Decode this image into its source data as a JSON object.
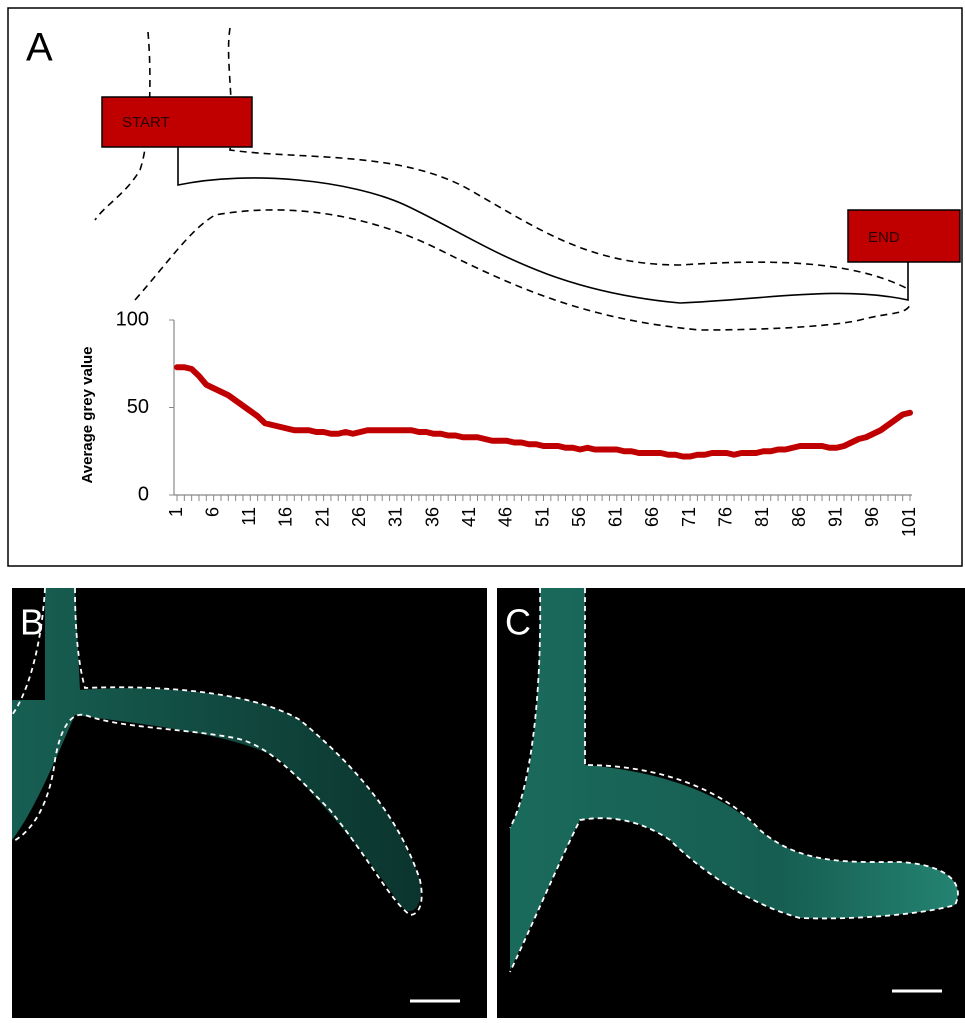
{
  "panels": {
    "a": "A",
    "b": "B",
    "c": "C"
  },
  "chart_data": {
    "type": "line",
    "annotations": [
      "START",
      "END"
    ],
    "y_label": "Average grey value",
    "categories": [
      1,
      null,
      null,
      null,
      null,
      6,
      null,
      null,
      null,
      null,
      11,
      null,
      null,
      null,
      null,
      16,
      null,
      null,
      null,
      null,
      21,
      null,
      null,
      null,
      null,
      26,
      null,
      null,
      null,
      null,
      31,
      null,
      null,
      null,
      null,
      36,
      null,
      null,
      null,
      null,
      41,
      null,
      null,
      null,
      null,
      46,
      null,
      null,
      null,
      null,
      51,
      null,
      null,
      null,
      null,
      56,
      null,
      null,
      null,
      null,
      61,
      null,
      null,
      null,
      null,
      66,
      null,
      null,
      null,
      null,
      71,
      null,
      null,
      null,
      null,
      76,
      null,
      null,
      null,
      null,
      81,
      null,
      null,
      null,
      null,
      86,
      null,
      null,
      null,
      null,
      91,
      null,
      null,
      null,
      null,
      96,
      null,
      null,
      null,
      null,
      101
    ],
    "values": [
      73,
      73,
      72,
      68,
      63,
      61,
      59,
      57,
      54,
      51,
      48,
      45,
      41,
      40,
      39,
      38,
      37,
      37,
      37,
      36,
      36,
      35,
      35,
      36,
      35,
      36,
      37,
      37,
      37,
      37,
      37,
      37,
      37,
      36,
      36,
      35,
      35,
      34,
      34,
      33,
      33,
      33,
      32,
      31,
      31,
      31,
      30,
      30,
      29,
      29,
      28,
      28,
      28,
      27,
      27,
      26,
      27,
      26,
      26,
      26,
      26,
      25,
      25,
      24,
      24,
      24,
      24,
      23,
      23,
      22,
      22,
      23,
      23,
      24,
      24,
      24,
      23,
      24,
      24,
      24,
      25,
      25,
      26,
      26,
      27,
      28,
      28,
      28,
      28,
      27,
      27,
      28,
      30,
      32,
      33,
      35,
      37,
      40,
      43,
      46,
      47
    ],
    "color": "#c00000",
    "ylim": [
      0,
      100
    ],
    "yticks": [
      0,
      50,
      100
    ],
    "grid": false
  }
}
